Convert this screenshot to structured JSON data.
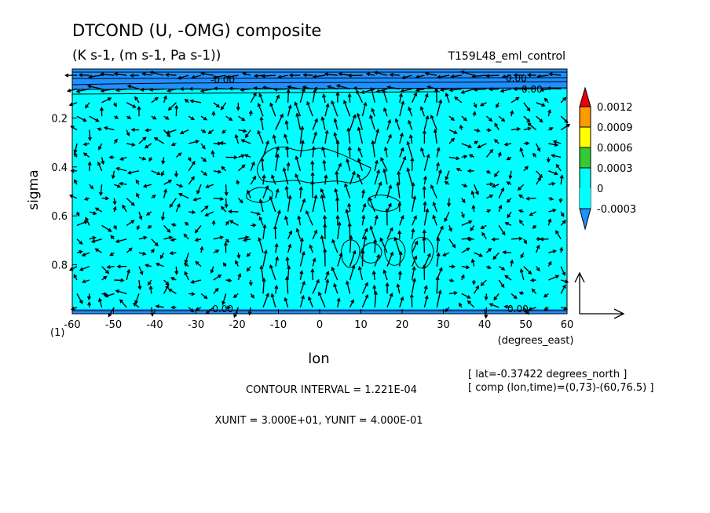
{
  "header": {
    "title": "DTCOND (U, -OMG) composite",
    "units": "(K s-1, (m s-1, Pa s-1))",
    "run": "T159L48_eml_control"
  },
  "footer": {
    "lat": "[ lat=-0.37422 degrees_north ]",
    "comp": "[ comp (lon,time)=(0,73)-(60,76.5) ]",
    "contour_interval": "CONTOUR INTERVAL = 1.221E-04",
    "vector_units": "XUNIT = 3.000E+01, YUNIT = 4.000E-01"
  },
  "chart_data": {
    "type": "heatmap",
    "variable": "DTCOND",
    "vector_field": "(U, -OMG)",
    "xlabel": "lon",
    "xunits": "(degrees_east)",
    "ylabel": "sigma",
    "xlim": [
      -60,
      60
    ],
    "ylim": [
      1.0,
      0.0
    ],
    "y_reversed": true,
    "corner_label": "(1)",
    "x_ticks": [
      "-60",
      "-50",
      "-40",
      "-30",
      "-20",
      "-10",
      "0",
      "10",
      "20",
      "30",
      "40",
      "50",
      "60"
    ],
    "y_ticks": [
      "0.2",
      "0.4",
      "0.6",
      "0.8"
    ],
    "y_tick_values": [
      0.2,
      0.4,
      0.6,
      0.8
    ],
    "contour_labels": [
      {
        "text": "0.00",
        "lon": 49,
        "sigma": 0.985
      },
      {
        "text": "-0.00",
        "lon": -23,
        "sigma": 0.985
      },
      {
        "text": "0.00",
        "lon": 50,
        "sigma": 0.055
      },
      {
        "text": "0.00",
        "lon": 52,
        "sigma": 0.085
      },
      {
        "text": "-0.00",
        "lon": -22,
        "sigma": 0.06
      }
    ],
    "colorbar": {
      "labels": [
        "0.0012",
        "0.0009",
        "0.0006",
        "0.0003",
        "0",
        "-0.0003"
      ],
      "colors": [
        "#ff0000",
        "#ff9900",
        "#ffff00",
        "#33cc33",
        "#00ffff",
        "#3399ff",
        "#0066ff",
        "#cc0000"
      ]
    },
    "dominant_fill": "#00ffff",
    "negative_band_fill": "#1e90ff",
    "grid": false
  }
}
